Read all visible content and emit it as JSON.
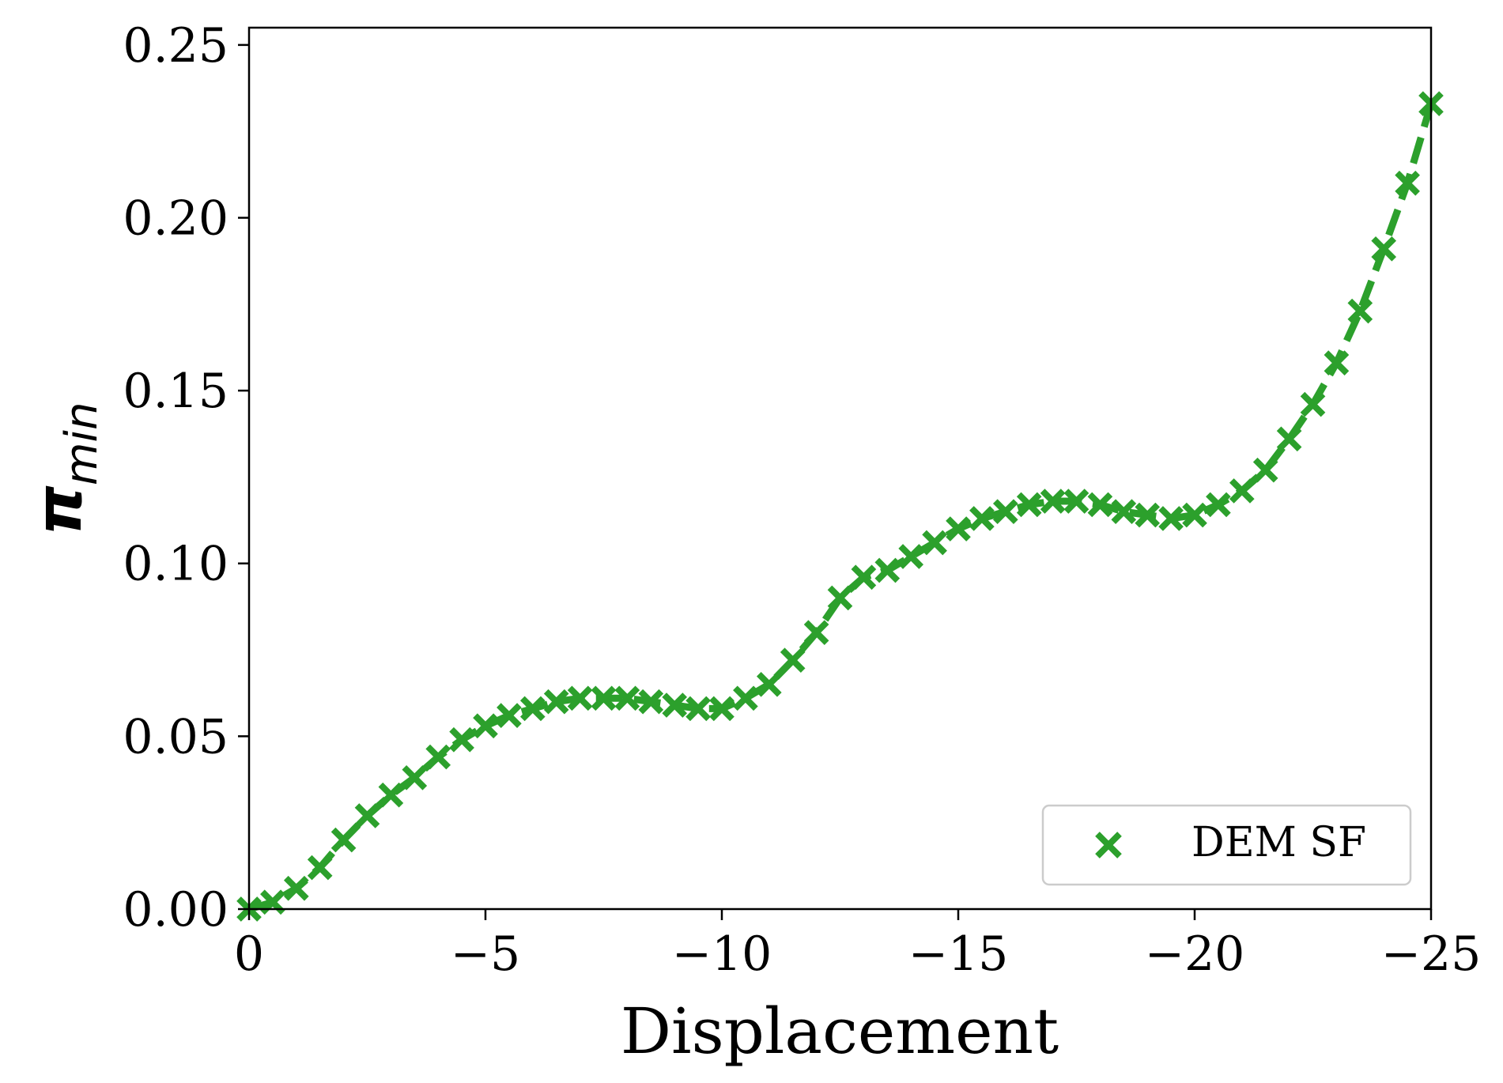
{
  "chart_data": {
    "type": "line",
    "title": "",
    "xlabel": "Displacement",
    "ylabel": "π",
    "ylabel_subscript": "min",
    "xlim": [
      0,
      -25
    ],
    "ylim": [
      0,
      0.255
    ],
    "x_ticks": [
      0,
      -5,
      -10,
      -15,
      -20,
      -25
    ],
    "x_tick_labels": [
      "0",
      "−5",
      "−10",
      "−15",
      "−20",
      "−25"
    ],
    "y_ticks": [
      0,
      0.05,
      0.1,
      0.15,
      0.2,
      0.25
    ],
    "y_tick_labels": [
      "0.00",
      "0.05",
      "0.10",
      "0.15",
      "0.20",
      "0.25"
    ],
    "grid": false,
    "legend_position": "lower-right",
    "series": [
      {
        "name": "DEM SF",
        "color": "#2ca02c",
        "marker": "x",
        "line_style": "dashed",
        "x": [
          0,
          -0.5,
          -1,
          -1.5,
          -2,
          -2.5,
          -3,
          -3.5,
          -4,
          -4.5,
          -5,
          -5.5,
          -6,
          -6.5,
          -7,
          -7.5,
          -8,
          -8.5,
          -9,
          -9.5,
          -10,
          -10.5,
          -11,
          -11.5,
          -12,
          -12.5,
          -13,
          -13.5,
          -14,
          -14.5,
          -15,
          -15.5,
          -16,
          -16.5,
          -17,
          -17.5,
          -18,
          -18.5,
          -19,
          -19.5,
          -20,
          -20.5,
          -21,
          -21.5,
          -22,
          -22.5,
          -23,
          -23.5,
          -24,
          -24.5,
          -25
        ],
        "y": [
          0.0,
          0.002,
          0.006,
          0.012,
          0.02,
          0.027,
          0.033,
          0.038,
          0.044,
          0.049,
          0.053,
          0.056,
          0.058,
          0.06,
          0.061,
          0.061,
          0.061,
          0.06,
          0.059,
          0.058,
          0.058,
          0.061,
          0.065,
          0.072,
          0.08,
          0.09,
          0.096,
          0.098,
          0.102,
          0.106,
          0.11,
          0.113,
          0.115,
          0.117,
          0.118,
          0.118,
          0.117,
          0.115,
          0.114,
          0.113,
          0.114,
          0.117,
          0.121,
          0.127,
          0.136,
          0.146,
          0.158,
          0.173,
          0.191,
          0.21,
          0.233
        ]
      }
    ]
  }
}
